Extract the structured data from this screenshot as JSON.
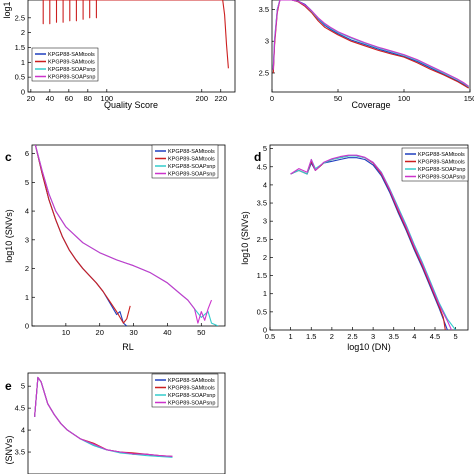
{
  "figure": {
    "panels": [
      {
        "id": "a",
        "letter": "",
        "xlabel": "Quality Score",
        "ylabel": "log1"
      },
      {
        "id": "b",
        "letter": "",
        "xlabel": "Coverage",
        "ylabel": ""
      },
      {
        "id": "c",
        "letter": "c",
        "xlabel": "RL",
        "ylabel": "log10 (SNVs)"
      },
      {
        "id": "d",
        "letter": "d",
        "xlabel": "log10 (DN)",
        "ylabel": "log10 (SNVs)"
      },
      {
        "id": "e",
        "letter": "e",
        "xlabel": "",
        "ylabel": "(SNVs)"
      }
    ]
  },
  "legend": [
    {
      "name": "KPGP88-SAMtools",
      "color": "#1f3fbf"
    },
    {
      "name": "KPGP89-SAMtools",
      "color": "#cc1f1f"
    },
    {
      "name": "KPGP88-SOAPsnp",
      "color": "#33cccc"
    },
    {
      "name": "KPGP89-SOAPsnp",
      "color": "#cc33cc"
    }
  ],
  "chart_data": [
    {
      "id": "a",
      "type": "line",
      "xlabel": "Quality Score",
      "ylabel": "log1",
      "xlim": [
        17,
        235
      ],
      "ylim": [
        0,
        3.1
      ],
      "xticks": [
        20,
        40,
        60,
        80,
        100,
        200,
        220
      ],
      "yticks": [
        0,
        0.5,
        1,
        1.5,
        2,
        2.5
      ],
      "series": [
        {
          "name": "KPGP88-SAMtools",
          "color": "#1f3fbf",
          "x": [],
          "y": []
        },
        {
          "name": "KPGP89-SAMtools",
          "color": "#cc1f1f",
          "x": [
            33,
            33,
            33,
            40,
            40,
            40,
            47,
            47,
            47,
            54,
            54,
            54,
            61,
            61,
            61,
            68,
            68,
            68,
            75,
            75,
            75,
            82,
            82,
            82,
            89,
            89,
            89,
            222,
            224,
            226,
            228
          ],
          "y": [
            3.1,
            2.3,
            3.1,
            3.1,
            2.3,
            3.1,
            3.1,
            2.35,
            3.1,
            3.1,
            2.35,
            3.1,
            3.1,
            2.4,
            3.1,
            3.1,
            2.4,
            3.1,
            3.1,
            2.45,
            3.1,
            3.1,
            2.5,
            3.1,
            3.1,
            2.5,
            3.1,
            3.1,
            2.6,
            1.6,
            0.8
          ]
        },
        {
          "name": "KPGP88-SOAPsnp",
          "color": "#33cccc",
          "x": [],
          "y": []
        },
        {
          "name": "KPGP89-SOAPsnp",
          "color": "#cc33cc",
          "x": [],
          "y": []
        }
      ]
    },
    {
      "id": "b",
      "type": "line",
      "xlabel": "Coverage",
      "ylabel": "",
      "xlim": [
        0,
        150
      ],
      "ylim": [
        2.2,
        3.65
      ],
      "xticks": [
        0,
        50,
        100,
        150
      ],
      "yticks": [
        2.5,
        3,
        3.5
      ],
      "series": [
        {
          "name": "KPGP88-SAMtools",
          "color": "#1f3fbf",
          "x": [
            1,
            2,
            4,
            6,
            10,
            15,
            20,
            25,
            30,
            35,
            40,
            45,
            50,
            60,
            70,
            80,
            90,
            100,
            110,
            120,
            130,
            140,
            145,
            149
          ],
          "y": [
            2.55,
            3.0,
            3.5,
            3.65,
            3.65,
            3.65,
            3.63,
            3.58,
            3.48,
            3.35,
            3.25,
            3.18,
            3.12,
            3.02,
            2.95,
            2.88,
            2.82,
            2.76,
            2.68,
            2.58,
            2.48,
            2.38,
            2.32,
            2.27
          ]
        },
        {
          "name": "KPGP89-SAMtools",
          "color": "#cc1f1f",
          "x": [
            1,
            2,
            4,
            6,
            10,
            15,
            20,
            25,
            30,
            35,
            40,
            45,
            50,
            60,
            70,
            80,
            90,
            100,
            110,
            120,
            130,
            140,
            145,
            149
          ],
          "y": [
            2.5,
            2.95,
            3.45,
            3.65,
            3.65,
            3.65,
            3.62,
            3.55,
            3.45,
            3.32,
            3.22,
            3.16,
            3.1,
            3.0,
            2.93,
            2.86,
            2.8,
            2.75,
            2.66,
            2.56,
            2.47,
            2.37,
            2.31,
            2.26
          ]
        },
        {
          "name": "KPGP88-SOAPsnp",
          "color": "#33cccc",
          "x": [
            1,
            2,
            4,
            6,
            10,
            15,
            20,
            25,
            30,
            35,
            40,
            45,
            50,
            60,
            70,
            80,
            90,
            100,
            110,
            120,
            130,
            140,
            145,
            149
          ],
          "y": [
            2.6,
            3.05,
            3.5,
            3.65,
            3.65,
            3.65,
            3.63,
            3.57,
            3.47,
            3.36,
            3.27,
            3.2,
            3.14,
            3.05,
            2.97,
            2.9,
            2.84,
            2.78,
            2.7,
            2.6,
            2.5,
            2.4,
            2.34,
            2.28
          ]
        },
        {
          "name": "KPGP89-SOAPsnp",
          "color": "#cc33cc",
          "x": [
            1,
            2,
            4,
            6,
            10,
            15,
            20,
            25,
            30,
            35,
            40,
            45,
            50,
            60,
            70,
            80,
            90,
            100,
            110,
            120,
            130,
            140,
            145,
            149
          ],
          "y": [
            2.55,
            3.0,
            3.48,
            3.65,
            3.65,
            3.65,
            3.63,
            3.57,
            3.48,
            3.37,
            3.28,
            3.21,
            3.15,
            3.06,
            2.98,
            2.91,
            2.85,
            2.79,
            2.71,
            2.61,
            2.51,
            2.41,
            2.35,
            2.29
          ]
        }
      ]
    },
    {
      "id": "c",
      "type": "line",
      "xlabel": "RL",
      "ylabel": "log10 (SNVs)",
      "xlim": [
        0,
        57
      ],
      "ylim": [
        0,
        6.3
      ],
      "xticks": [
        10,
        20,
        30,
        40,
        50
      ],
      "yticks": [
        0,
        1,
        2,
        3,
        4,
        5,
        6
      ],
      "series": [
        {
          "name": "KPGP88-SAMtools",
          "color": "#1f3fbf",
          "x": [
            1,
            3,
            5,
            7,
            9,
            11,
            13,
            15,
            17,
            19,
            21,
            23,
            25,
            26,
            27,
            28
          ],
          "y": [
            6.3,
            5.3,
            4.4,
            3.7,
            3.1,
            2.65,
            2.3,
            2.0,
            1.75,
            1.5,
            1.2,
            0.8,
            0.4,
            0.5,
            0.1,
            0
          ]
        },
        {
          "name": "KPGP89-SAMtools",
          "color": "#cc1f1f",
          "x": [
            1,
            3,
            5,
            7,
            9,
            11,
            13,
            15,
            17,
            19,
            21,
            23,
            25,
            27,
            28,
            29
          ],
          "y": [
            6.3,
            5.3,
            4.4,
            3.7,
            3.1,
            2.65,
            2.3,
            2.0,
            1.75,
            1.5,
            1.2,
            0.85,
            0.5,
            0.1,
            0.25,
            0.7
          ]
        },
        {
          "name": "KPGP88-SOAPsnp",
          "color": "#33cccc",
          "x": [
            1,
            3,
            5,
            7,
            10,
            15,
            20,
            25,
            30,
            35,
            40,
            44,
            46,
            48,
            50,
            52,
            53,
            55
          ],
          "y": [
            6.3,
            5.4,
            4.6,
            4.0,
            3.45,
            2.9,
            2.55,
            2.3,
            2.1,
            1.85,
            1.5,
            1.1,
            0.9,
            0.6,
            0.3,
            0.5,
            0.1,
            0
          ]
        },
        {
          "name": "KPGP89-SOAPsnp",
          "color": "#cc33cc",
          "x": [
            1,
            3,
            5,
            7,
            10,
            15,
            20,
            25,
            30,
            35,
            40,
            44,
            46,
            48,
            49,
            50,
            51,
            52,
            53
          ],
          "y": [
            6.3,
            5.4,
            4.6,
            4.0,
            3.45,
            2.9,
            2.55,
            2.3,
            2.1,
            1.85,
            1.5,
            1.1,
            0.9,
            0.6,
            0.1,
            0.5,
            0.2,
            0.6,
            0.9
          ]
        }
      ]
    },
    {
      "id": "d",
      "type": "line",
      "xlabel": "log10 (DN)",
      "ylabel": "log10 (SNVs)",
      "xlim": [
        0.5,
        5.3
      ],
      "ylim": [
        0,
        5.1
      ],
      "xticks": [
        0.5,
        1,
        1.5,
        2,
        2.5,
        3,
        3.5,
        4,
        4.5,
        5
      ],
      "xticklabels": [
        "0.5",
        "1",
        "1.5",
        "2",
        "2.5",
        "3",
        "3.5",
        "4",
        "4.5",
        "5"
      ],
      "yticks": [
        0,
        0.5,
        1,
        1.5,
        2,
        2.5,
        3,
        3.5,
        4,
        4.5,
        5
      ],
      "series": [
        {
          "name": "KPGP88-SAMtools",
          "color": "#1f3fbf",
          "x": [
            1.0,
            1.2,
            1.4,
            1.5,
            1.6,
            1.8,
            2.0,
            2.2,
            2.4,
            2.6,
            2.8,
            3.0,
            3.2,
            3.4,
            3.6,
            3.8,
            4.0,
            4.2,
            4.4,
            4.6,
            4.7,
            4.8
          ],
          "y": [
            4.3,
            4.4,
            4.3,
            4.6,
            4.4,
            4.6,
            4.65,
            4.7,
            4.75,
            4.75,
            4.7,
            4.55,
            4.25,
            3.8,
            3.25,
            2.75,
            2.2,
            1.7,
            1.15,
            0.6,
            0.3,
            0
          ]
        },
        {
          "name": "KPGP89-SAMtools",
          "color": "#cc1f1f",
          "x": [
            1.0,
            1.2,
            1.4,
            1.5,
            1.6,
            1.8,
            2.0,
            2.2,
            2.4,
            2.6,
            2.8,
            3.0,
            3.2,
            3.4,
            3.6,
            3.8,
            4.0,
            4.2,
            4.4,
            4.6,
            4.7,
            4.75
          ],
          "y": [
            4.3,
            4.4,
            4.3,
            4.65,
            4.4,
            4.6,
            4.7,
            4.75,
            4.8,
            4.8,
            4.75,
            4.6,
            4.3,
            3.85,
            3.3,
            2.8,
            2.25,
            1.75,
            1.2,
            0.65,
            0.35,
            0
          ]
        },
        {
          "name": "KPGP88-SOAPsnp",
          "color": "#33cccc",
          "x": [
            1.0,
            1.2,
            1.4,
            1.5,
            1.6,
            1.8,
            2.0,
            2.2,
            2.4,
            2.6,
            2.8,
            3.0,
            3.2,
            3.4,
            3.6,
            3.8,
            4.0,
            4.2,
            4.4,
            4.6,
            4.8,
            5.0
          ],
          "y": [
            4.3,
            4.4,
            4.3,
            4.7,
            4.45,
            4.6,
            4.7,
            4.75,
            4.8,
            4.8,
            4.75,
            4.62,
            4.35,
            3.9,
            3.4,
            2.9,
            2.35,
            1.85,
            1.3,
            0.75,
            0.3,
            0
          ]
        },
        {
          "name": "KPGP89-SOAPsnp",
          "color": "#cc33cc",
          "x": [
            1.0,
            1.2,
            1.4,
            1.5,
            1.6,
            1.8,
            2.0,
            2.2,
            2.4,
            2.6,
            2.8,
            3.0,
            3.2,
            3.4,
            3.6,
            3.8,
            4.0,
            4.2,
            4.4,
            4.6,
            4.8,
            4.9
          ],
          "y": [
            4.3,
            4.45,
            4.35,
            4.7,
            4.4,
            4.62,
            4.72,
            4.78,
            4.82,
            4.82,
            4.76,
            4.62,
            4.33,
            3.88,
            3.35,
            2.85,
            2.3,
            1.8,
            1.25,
            0.7,
            0.25,
            0
          ]
        }
      ]
    },
    {
      "id": "e",
      "type": "line",
      "xlabel": "",
      "ylabel": "(SNVs)",
      "xlim": [
        0,
        30
      ],
      "ylim": [
        3.0,
        5.3
      ],
      "xticks": [],
      "yticks": [
        3.5,
        4,
        4.5,
        5
      ],
      "series": [
        {
          "name": "KPGP88-SAMtools",
          "color": "#1f3fbf",
          "x": [
            1,
            1.5,
            2,
            3,
            4,
            5,
            6,
            8,
            10,
            12,
            14,
            16,
            18,
            20,
            22
          ],
          "y": [
            4.3,
            5.2,
            5.1,
            4.6,
            4.35,
            4.15,
            4.0,
            3.8,
            3.65,
            3.55,
            3.5,
            3.45,
            3.45,
            3.4,
            3.4
          ]
        },
        {
          "name": "KPGP89-SAMtools",
          "color": "#cc1f1f",
          "x": [
            1,
            1.5,
            2,
            3,
            4,
            5,
            6,
            8,
            10,
            12,
            14,
            16,
            18,
            20,
            22
          ],
          "y": [
            4.3,
            5.2,
            5.1,
            4.6,
            4.35,
            4.15,
            4.0,
            3.8,
            3.7,
            3.55,
            3.5,
            3.48,
            3.45,
            3.42,
            3.4
          ]
        },
        {
          "name": "KPGP88-SOAPsnp",
          "color": "#33cccc",
          "x": [
            1,
            1.5,
            2,
            3,
            4,
            5,
            6,
            8,
            10,
            12,
            14,
            16,
            18,
            20,
            22
          ],
          "y": [
            4.3,
            5.2,
            5.1,
            4.6,
            4.35,
            4.15,
            4.0,
            3.8,
            3.65,
            3.55,
            3.48,
            3.45,
            3.42,
            3.4,
            3.38
          ]
        },
        {
          "name": "KPGP89-SOAPsnp",
          "color": "#cc33cc",
          "x": [
            1,
            1.5,
            2,
            3,
            4,
            5,
            6,
            8,
            10,
            12,
            14,
            16,
            18,
            20,
            22
          ],
          "y": [
            4.3,
            5.2,
            5.1,
            4.6,
            4.35,
            4.15,
            4.0,
            3.8,
            3.68,
            3.55,
            3.5,
            3.46,
            3.45,
            3.42,
            3.4
          ]
        }
      ]
    }
  ]
}
